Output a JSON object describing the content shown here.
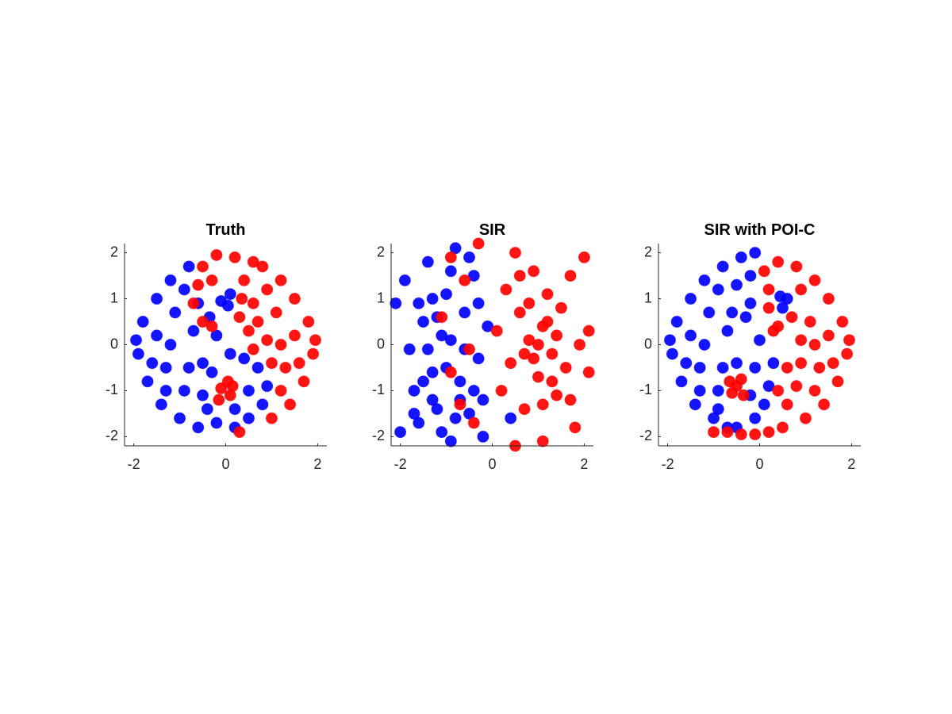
{
  "chart_data": [
    {
      "type": "scatter",
      "title": "Truth",
      "xlim": [
        -2.2,
        2.2
      ],
      "ylim": [
        -2.2,
        2.2
      ],
      "xticks": [
        -2,
        0,
        2
      ],
      "yticks": [
        -2,
        -1,
        0,
        1,
        2
      ],
      "series": [
        {
          "color": "#0000ff",
          "x": [
            -1.8,
            -1.9,
            -1.7,
            -1.5,
            -1.4,
            -1.2,
            -1.0,
            -0.8,
            -0.6,
            -1.5,
            -1.3,
            -1.1,
            -0.9,
            -0.7,
            -0.5,
            -1.6,
            -1.2,
            -0.9,
            -0.6,
            -0.4,
            -0.2,
            0.2,
            0.5,
            0.8,
            0.9,
            0.7,
            0.4,
            0.1,
            -0.3,
            -0.5,
            0.5,
            -0.1,
            0.1,
            0.05,
            -1.95,
            -1.3,
            -0.8,
            -0.2,
            -0.35,
            0.2
          ],
          "values": [
            0.5,
            -0.2,
            -0.8,
            1.0,
            -1.3,
            1.4,
            -1.6,
            1.7,
            -1.8,
            0.2,
            -0.5,
            0.7,
            -1.0,
            0.3,
            -0.4,
            -0.4,
            0.0,
            1.2,
            0.9,
            -1.4,
            -1.7,
            -1.8,
            -1.6,
            -1.3,
            -0.9,
            -0.5,
            -0.3,
            -0.2,
            -0.6,
            -1.1,
            -1.0,
            0.95,
            1.1,
            0.85,
            0.1,
            -1.0,
            -0.5,
            0.2,
            0.6,
            -1.4
          ]
        },
        {
          "color": "#ff0000",
          "x": [
            1.8,
            1.9,
            1.7,
            1.5,
            1.4,
            1.2,
            1.0,
            0.8,
            0.6,
            0.3,
            1.5,
            1.3,
            1.1,
            0.9,
            0.7,
            0.5,
            1.6,
            1.2,
            0.9,
            0.6,
            1.2,
            0.2,
            -0.2,
            -0.5,
            -0.6,
            -0.7,
            -0.5,
            -0.3,
            0.3,
            0.4,
            -0.3,
            0.35,
            -0.1,
            0.1,
            0.05,
            -0.15,
            0.15,
            1.95,
            1.0,
            0.6
          ],
          "values": [
            0.5,
            -0.2,
            -0.8,
            1.0,
            -1.3,
            1.4,
            -1.6,
            1.7,
            1.8,
            -1.9,
            0.2,
            -0.5,
            0.7,
            0.1,
            0.5,
            0.3,
            -0.4,
            0.0,
            1.2,
            0.9,
            -1.0,
            1.9,
            1.95,
            1.7,
            1.3,
            0.9,
            0.5,
            0.4,
            0.6,
            1.4,
            1.4,
            1.0,
            -0.95,
            -1.1,
            -0.8,
            -1.2,
            -0.9,
            0.1,
            -0.4,
            -0.1
          ]
        }
      ]
    },
    {
      "type": "scatter",
      "title": "SIR",
      "xlim": [
        -2.2,
        2.2
      ],
      "ylim": [
        -2.2,
        2.2
      ],
      "xticks": [
        -2,
        0,
        2
      ],
      "yticks": [
        -2,
        -1,
        0,
        1,
        2
      ],
      "series": [
        {
          "color": "#0000ff",
          "x": [
            -2.1,
            -2.0,
            -1.9,
            -1.8,
            -1.7,
            -1.6,
            -1.5,
            -1.4,
            -1.3,
            -1.2,
            -1.1,
            -1.0,
            -0.9,
            -0.8,
            -0.7,
            -0.6,
            -0.5,
            -0.4,
            -0.3,
            -0.2,
            -0.1,
            -1.5,
            -1.3,
            -1.1,
            -0.9,
            -0.7,
            -0.5,
            -0.3,
            -1.4,
            -1.2,
            -1.0,
            -0.8,
            -0.6,
            -0.4,
            -1.6,
            -0.2,
            0.4,
            -1.7,
            -0.9,
            -1.3
          ],
          "values": [
            0.9,
            -1.9,
            1.4,
            -0.1,
            -1.0,
            -1.7,
            0.5,
            1.8,
            -0.6,
            -1.4,
            0.2,
            1.1,
            -2.1,
            2.1,
            -0.8,
            0.7,
            -1.5,
            1.5,
            -0.3,
            -2.0,
            0.4,
            -0.8,
            1.0,
            -1.9,
            0.1,
            -1.2,
            1.9,
            0.9,
            -0.1,
            0.6,
            -0.5,
            -1.6,
            -0.1,
            -1.0,
            0.9,
            -1.2,
            -1.6,
            -1.5,
            1.6,
            -1.2
          ]
        },
        {
          "color": "#ff0000",
          "x": [
            0.1,
            0.2,
            0.3,
            0.4,
            0.5,
            0.5,
            0.6,
            0.7,
            0.8,
            0.9,
            1.0,
            1.1,
            1.1,
            1.2,
            1.3,
            1.4,
            1.5,
            1.6,
            1.7,
            1.8,
            1.9,
            2.0,
            2.1,
            1.0,
            0.9,
            1.2,
            0.8,
            1.3,
            0.7,
            1.1,
            0.6,
            1.4,
            -0.9,
            -0.3,
            -0.6,
            -0.5,
            -0.7,
            -0.9,
            -0.4,
            -1.1,
            2.1,
            1.7
          ],
          "values": [
            0.3,
            -1.0,
            1.2,
            -0.4,
            2.0,
            -2.2,
            0.7,
            -1.4,
            0.1,
            1.6,
            -0.7,
            0.4,
            -2.1,
            1.1,
            -0.2,
            -1.1,
            0.8,
            -0.5,
            1.5,
            -1.8,
            0.0,
            1.9,
            0.3,
            0.0,
            -0.3,
            0.5,
            0.9,
            -0.8,
            -0.2,
            -1.3,
            1.5,
            0.2,
            1.9,
            2.2,
            1.4,
            -0.1,
            -1.3,
            -0.6,
            -1.7,
            0.6,
            -0.6,
            -1.2
          ]
        }
      ]
    },
    {
      "type": "scatter",
      "title": "SIR with POI-C",
      "xlim": [
        -2.2,
        2.2
      ],
      "ylim": [
        -2.2,
        2.2
      ],
      "xticks": [
        -2,
        0,
        2
      ],
      "yticks": [
        -2,
        -1,
        0,
        1,
        2
      ],
      "series": [
        {
          "color": "#0000ff",
          "x": [
            -1.8,
            -1.9,
            -1.7,
            -1.5,
            -1.4,
            -1.2,
            -1.0,
            -0.8,
            -0.4,
            -0.1,
            -1.5,
            -1.3,
            -1.1,
            -0.9,
            -0.7,
            -0.5,
            -1.6,
            -1.2,
            -0.9,
            -0.5,
            -0.2,
            -0.3,
            0.0,
            -0.1,
            0.2,
            0.1,
            -0.1,
            -0.5,
            -0.9,
            -0.2,
            0.3,
            0.5,
            0.6,
            0.45,
            -1.95,
            -1.3,
            -0.8,
            -0.2,
            -0.6,
            -0.7
          ],
          "values": [
            0.5,
            -0.2,
            -0.8,
            1.0,
            -1.3,
            1.4,
            -1.6,
            1.7,
            1.9,
            2.0,
            0.2,
            -0.5,
            0.7,
            -1.0,
            0.3,
            -0.4,
            -0.4,
            0.0,
            1.2,
            1.3,
            1.5,
            0.6,
            0.1,
            -0.5,
            -0.9,
            -1.3,
            -1.6,
            -1.8,
            -1.4,
            -1.1,
            -0.4,
            0.8,
            1.0,
            1.05,
            0.1,
            -1.0,
            -0.5,
            0.9,
            0.7,
            -1.8
          ]
        },
        {
          "color": "#ff0000",
          "x": [
            1.8,
            1.9,
            1.7,
            1.5,
            1.4,
            1.2,
            1.0,
            0.8,
            0.4,
            0.2,
            1.5,
            1.3,
            1.1,
            0.9,
            0.6,
            0.3,
            1.6,
            1.2,
            0.9,
            0.2,
            1.2,
            -0.1,
            -0.4,
            -0.7,
            0.6,
            0.5,
            0.8,
            0.1,
            0.4,
            0.2,
            -0.5,
            -0.6,
            -0.4,
            -0.35,
            -0.65,
            1.95,
            0.9,
            0.7,
            -1.0,
            0.4
          ],
          "values": [
            0.5,
            -0.2,
            -0.8,
            1.0,
            -1.3,
            1.4,
            -1.6,
            1.7,
            1.8,
            -1.9,
            0.2,
            -0.5,
            0.5,
            0.1,
            -0.5,
            0.3,
            -0.4,
            0.0,
            1.2,
            1.2,
            -1.0,
            -1.95,
            -1.95,
            -1.9,
            -1.3,
            -1.8,
            -0.9,
            1.6,
            0.4,
            0.8,
            -0.9,
            -1.05,
            -0.75,
            -1.1,
            -0.8,
            0.1,
            -0.4,
            0.6,
            -1.9,
            -1.0
          ]
        }
      ]
    }
  ]
}
